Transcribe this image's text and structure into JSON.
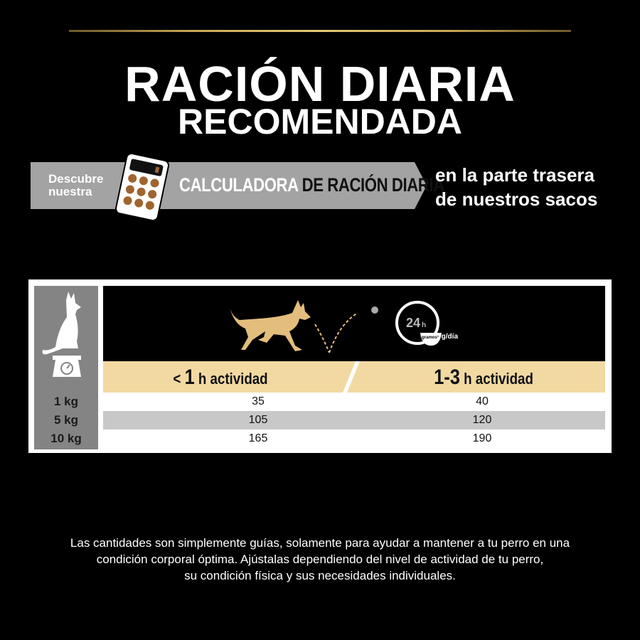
{
  "title": {
    "line1": "RACIÓN DIARIA",
    "line2": "RECOMENDADA"
  },
  "banner": {
    "intro": "Descubre nuestra",
    "highlight": "CALCULADORA",
    "rest": "DE RACIÓN DIARIA",
    "right_line1": "en la parte trasera",
    "right_line2": "de nuestros sacos"
  },
  "table": {
    "clock_label": "24",
    "clock_unit": "h",
    "bowl_label": "gramos*",
    "unit_note": "* g/día",
    "columns": [
      {
        "prefix": "< ",
        "num": "1",
        "suffix": " h actividad"
      },
      {
        "prefix": "",
        "num": "1-3",
        "suffix": " h  actividad"
      }
    ],
    "rows": [
      {
        "weight": "1 kg",
        "values": [
          "35",
          "40"
        ]
      },
      {
        "weight": "5 kg",
        "values": [
          "105",
          "120"
        ]
      },
      {
        "weight": "10 kg",
        "values": [
          "165",
          "190"
        ]
      }
    ]
  },
  "colors": {
    "gold": "#c9a955",
    "tan": "#f2d9a2",
    "dog": "#e3bd7c",
    "gray": "#a3a3a3",
    "kibble": "#a0642f"
  },
  "footer": {
    "line1": "Las cantidades son simplemente guías, solamente para ayudar a mantener a tu perro en una",
    "line2": "condición corporal óptima. Ajústalas dependiendo del nivel de actividad de tu perro,",
    "line3": "su condición física y sus necesidades individuales."
  }
}
